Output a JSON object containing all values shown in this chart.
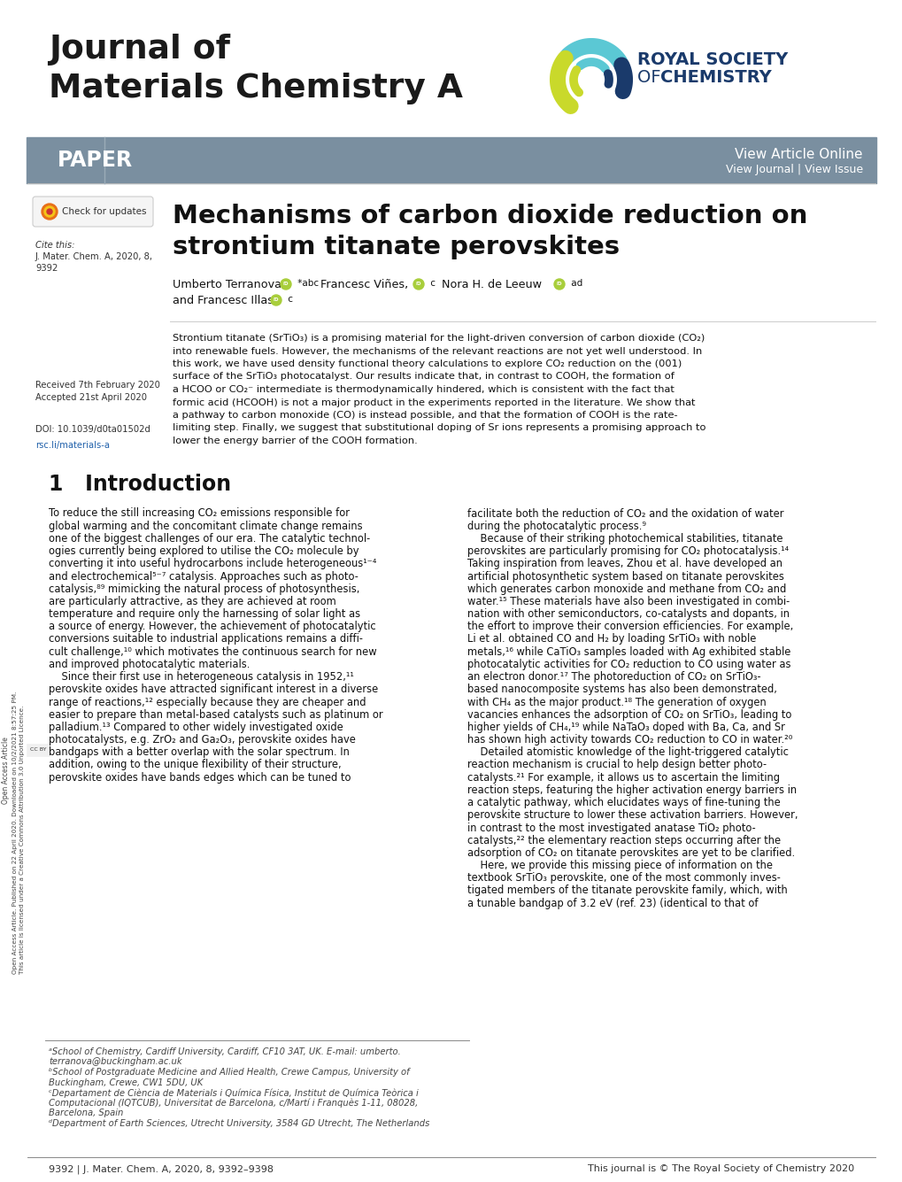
{
  "journal_title_line1": "Journal of",
  "journal_title_line2": "Materials Chemistry A",
  "paper_label": "PAPER",
  "view_article_online": "View Article Online",
  "view_journal_issue": "View Journal | View Issue",
  "article_title_line1": "Mechanisms of carbon dioxide reduction on",
  "article_title_line2": "strontium titanate perovskites",
  "cite_label": "Cite this:",
  "cite_body": "J. Mater. Chem. A, 2020, 8,",
  "cite_num": "9392",
  "received": "Received 7th February 2020",
  "accepted": "Accepted 21st April 2020",
  "doi": "DOI: 10.1039/d0ta01502d",
  "rsc": "rsc.li/materials-a",
  "footer_left": "9392 | J. Mater. Chem. A, 2020, 8, 9392–9398",
  "footer_right": "This journal is © The Royal Society of Chemistry 2020",
  "header_bg_color": "#7a8fa0",
  "rsc_blue": "#1a3a6b",
  "body_text_color": "#111111",
  "sidebar_text": "Open Access Article. Published on 22 April 2020. Downloaded on 10/2/2021 8:57:25 PM.",
  "sidebar_text2": "This article is licensed under a Creative Commons Attribution 3.0 Unported Licence.",
  "abstract_lines": [
    "Strontium titanate (SrTiO₃) is a promising material for the light-driven conversion of carbon dioxide (CO₂)",
    "into renewable fuels. However, the mechanisms of the relevant reactions are not yet well understood. In",
    "this work, we have used density functional theory calculations to explore CO₂ reduction on the (001)",
    "surface of the SrTiO₃ photocatalyst. Our results indicate that, in contrast to COOH, the formation of",
    "a HCOO or CO₂⁻ intermediate is thermodynamically hindered, which is consistent with the fact that",
    "formic acid (HCOOH) is not a major product in the experiments reported in the literature. We show that",
    "a pathway to carbon monoxide (CO) is instead possible, and that the formation of COOH is the rate-",
    "limiting step. Finally, we suggest that substitutional doping of Sr ions represents a promising approach to",
    "lower the energy barrier of the COOH formation."
  ],
  "left_col_lines": [
    "To reduce the still increasing CO₂ emissions responsible for",
    "global warming and the concomitant climate change remains",
    "one of the biggest challenges of our era. The catalytic technol-",
    "ogies currently being explored to utilise the CO₂ molecule by",
    "converting it into useful hydrocarbons include heterogeneous¹⁻⁴",
    "and electrochemical⁵⁻⁷ catalysis. Approaches such as photo-",
    "catalysis,⁸⁹ mimicking the natural process of photosynthesis,",
    "are particularly attractive, as they are achieved at room",
    "temperature and require only the harnessing of solar light as",
    "a source of energy. However, the achievement of photocatalytic",
    "conversions suitable to industrial applications remains a diffi-",
    "cult challenge,¹⁰ which motivates the continuous search for new",
    "and improved photocatalytic materials.",
    "    Since their first use in heterogeneous catalysis in 1952,¹¹",
    "perovskite oxides have attracted significant interest in a diverse",
    "range of reactions,¹² especially because they are cheaper and",
    "easier to prepare than metal-based catalysts such as platinum or",
    "palladium.¹³ Compared to other widely investigated oxide",
    "photocatalysts, e.g. ZrO₂ and Ga₂O₃, perovskite oxides have",
    "bandgaps with a better overlap with the solar spectrum. In",
    "addition, owing to the unique flexibility of their structure,",
    "perovskite oxides have bands edges which can be tuned to"
  ],
  "right_col_lines": [
    "facilitate both the reduction of CO₂ and the oxidation of water",
    "during the photocatalytic process.⁹",
    "    Because of their striking photochemical stabilities, titanate",
    "perovskites are particularly promising for CO₂ photocatalysis.¹⁴",
    "Taking inspiration from leaves, Zhou et al. have developed an",
    "artificial photosynthetic system based on titanate perovskites",
    "which generates carbon monoxide and methane from CO₂ and",
    "water.¹⁵ These materials have also been investigated in combi-",
    "nation with other semiconductors, co-catalysts and dopants, in",
    "the effort to improve their conversion efficiencies. For example,",
    "Li et al. obtained CO and H₂ by loading SrTiO₃ with noble",
    "metals,¹⁶ while CaTiO₃ samples loaded with Ag exhibited stable",
    "photocatalytic activities for CO₂ reduction to CO using water as",
    "an electron donor.¹⁷ The photoreduction of CO₂ on SrTiO₃-",
    "based nanocomposite systems has also been demonstrated,",
    "with CH₄ as the major product.¹⁸ The generation of oxygen",
    "vacancies enhances the adsorption of CO₂ on SrTiO₃, leading to",
    "higher yields of CH₄,¹⁹ while NaTaO₃ doped with Ba, Ca, and Sr",
    "has shown high activity towards CO₂ reduction to CO in water.²⁰",
    "    Detailed atomistic knowledge of the light-triggered catalytic",
    "reaction mechanism is crucial to help design better photo-",
    "catalysts.²¹ For example, it allows us to ascertain the limiting",
    "reaction steps, featuring the higher activation energy barriers in",
    "a catalytic pathway, which elucidates ways of fine-tuning the",
    "perovskite structure to lower these activation barriers. However,",
    "in contrast to the most investigated anatase TiO₂ photo-",
    "catalysts,²² the elementary reaction steps occurring after the",
    "adsorption of CO₂ on titanate perovskites are yet to be clarified.",
    "    Here, we provide this missing piece of information on the",
    "textbook SrTiO₃ perovskite, one of the most commonly inves-",
    "tigated members of the titanate perovskite family, which, with",
    "a tunable bandgap of 3.2 eV (ref. 23) (identical to that of"
  ],
  "footnote_lines": [
    "ᵃSchool of Chemistry, Cardiff University, Cardiff, CF10 3AT, UK. E-mail: umberto.",
    "terranova@buckingham.ac.uk",
    "ᵇSchool of Postgraduate Medicine and Allied Health, Crewe Campus, University of",
    "Buckingham, Crewe, CW1 5DU, UK",
    "ᶜDepartament de Ciència de Materials i Química Física, Institut de Química Teòrica i",
    "Computacional (IQTCUB), Universitat de Barcelona, c/Martí i Franquès 1-11, 08028,",
    "Barcelona, Spain",
    "ᵈDepartment of Earth Sciences, Utrecht University, 3584 GD Utrecht, The Netherlands"
  ]
}
